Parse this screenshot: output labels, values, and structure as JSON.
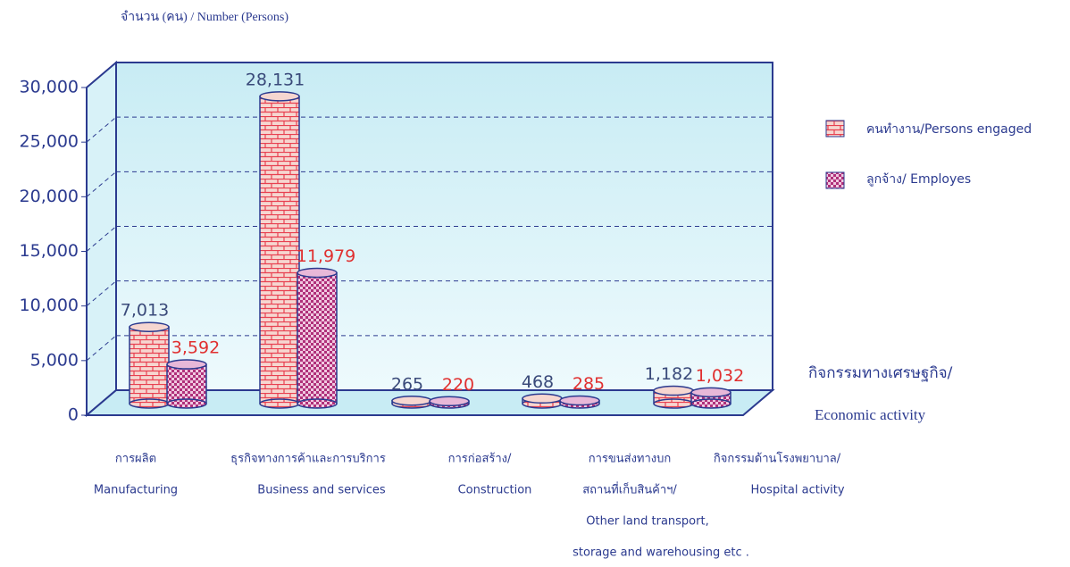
{
  "chart_data": {
    "type": "bar3d",
    "y_label": "จำนวน (คน) / Number (Persons)",
    "x_label": [
      "กิจกรรมทางเศรษฐกิจ/",
      "Economic activity"
    ],
    "categories": [
      [
        "การผลิต",
        "Manufacturing"
      ],
      [
        "ธุรกิจทางการค้าและการบริการ",
        "Business and services"
      ],
      [
        "การก่อสร้าง/",
        "Construction"
      ],
      [
        "การขนส่งทางบก",
        "สถานที่เก็บสินค้าฯ/",
        "Other land transport,",
        "storage and warehousing etc   ."
      ],
      [
        "กิจกรรมด้านโรงพยาบาล/",
        "Hospital activity"
      ]
    ],
    "series": [
      {
        "name": "คนทำงาน/Persons engaged",
        "color": "#e84050",
        "values": [
          7013,
          28131,
          265,
          468,
          1182
        ],
        "value_labels": [
          "7,013",
          "28,131",
          "265",
          "468",
          "1,182"
        ]
      },
      {
        "name": "ลูกจ้าง/ Employes",
        "color": "#b0307a",
        "values": [
          3592,
          11979,
          220,
          285,
          1032
        ],
        "value_labels": [
          "3,592",
          "11,979",
          "220",
          "285",
          "1,032"
        ]
      }
    ],
    "ylim": [
      0,
      30000
    ],
    "yticks": [
      0,
      {
        "value": 5000,
        "label": "5,000"
      },
      {
        "value": 10000,
        "label": "10,000"
      },
      {
        "value": 15000,
        "label": "15,000"
      },
      {
        "value": 20000,
        "label": "20,000"
      },
      {
        "value": 25000,
        "label": "25,000"
      },
      {
        "value": 30000,
        "label": "30,000"
      }
    ],
    "grid": true,
    "legend": "right"
  }
}
